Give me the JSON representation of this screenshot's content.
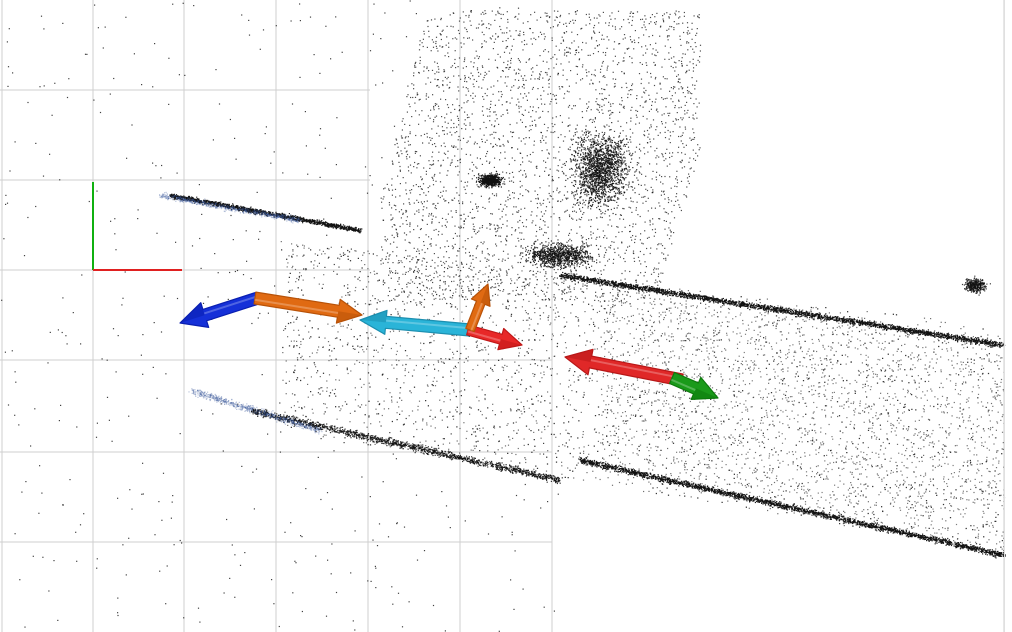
{
  "viewer": {
    "background": "#ffffff",
    "grid_color": "#cfcfcf",
    "point_color": "#111111",
    "point_tint": "#3a5a9a"
  },
  "axes": {
    "x_color": "#e02020",
    "y_color": "#10b010"
  },
  "arrows": [
    {
      "name": "blue-arrow",
      "color": "#1530d8",
      "head": "#0a1fb0"
    },
    {
      "name": "orange-arrow",
      "color": "#e06a12",
      "head": "#b85208"
    },
    {
      "name": "cyan-arrow",
      "color": "#2ab4d8",
      "head": "#1c8fb0"
    },
    {
      "name": "red-arrow-center",
      "color": "#e82828",
      "head": "#c01818"
    },
    {
      "name": "orange-arrow-up",
      "color": "#e06a12",
      "head": "#b85208"
    },
    {
      "name": "red-arrow-right",
      "color": "#e02828",
      "head": "#b81818"
    },
    {
      "name": "green-arrow",
      "color": "#1a9a1a",
      "head": "#0d7a0d"
    }
  ]
}
